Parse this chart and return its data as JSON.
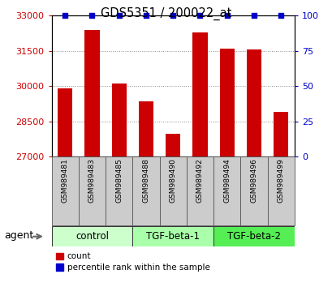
{
  "title": "GDS5351 / 200022_at",
  "samples": [
    "GSM989481",
    "GSM989483",
    "GSM989485",
    "GSM989488",
    "GSM989490",
    "GSM989492",
    "GSM989494",
    "GSM989496",
    "GSM989499"
  ],
  "counts": [
    29900,
    32400,
    30100,
    29350,
    27950,
    32300,
    31600,
    31550,
    28900
  ],
  "percentile_ranks": [
    100,
    100,
    100,
    100,
    100,
    100,
    100,
    100,
    100
  ],
  "ylim_left": [
    27000,
    33000
  ],
  "ylim_right": [
    0,
    100
  ],
  "yticks_left": [
    27000,
    28500,
    30000,
    31500,
    33000
  ],
  "yticks_right": [
    0,
    25,
    50,
    75,
    100
  ],
  "groups": [
    {
      "label": "control",
      "indices": [
        0,
        1,
        2
      ],
      "color": "#ccffcc"
    },
    {
      "label": "TGF-beta-1",
      "indices": [
        3,
        4,
        5
      ],
      "color": "#aaffaa"
    },
    {
      "label": "TGF-beta-2",
      "indices": [
        6,
        7,
        8
      ],
      "color": "#55ee55"
    }
  ],
  "bar_color": "#cc0000",
  "percentile_color": "#0000cc",
  "bar_width": 0.55,
  "grid_color": "#888888",
  "bg_color": "#ffffff",
  "tick_color_left": "#cc0000",
  "tick_color_right": "#0000cc",
  "agent_label": "agent",
  "legend_count_label": "count",
  "legend_pct_label": "percentile rank within the sample",
  "sample_box_color": "#cccccc"
}
